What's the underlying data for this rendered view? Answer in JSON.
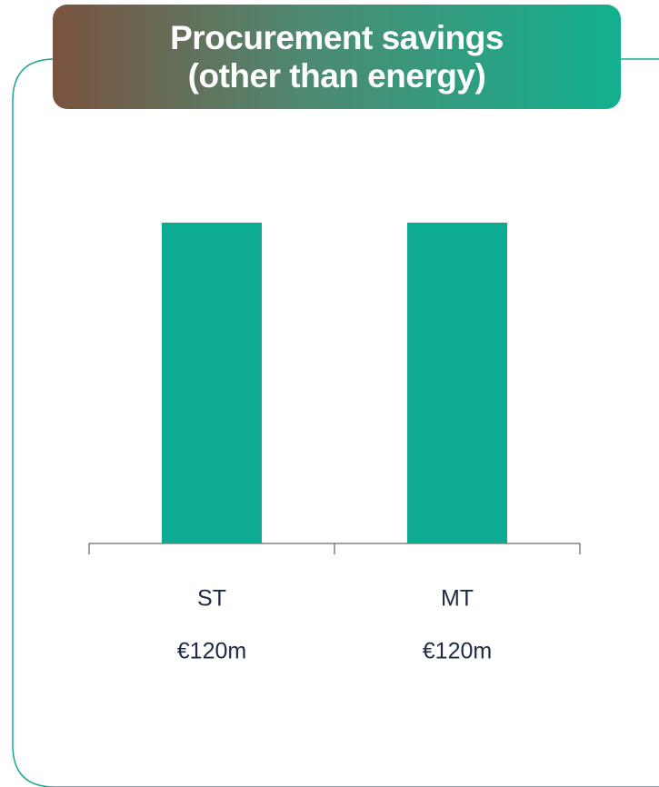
{
  "chart_data": {
    "type": "bar",
    "title": "Procurement savings (other than energy)",
    "categories": [
      "ST",
      "MT"
    ],
    "values": [
      120,
      120
    ],
    "value_labels": [
      "€120m",
      "€120m"
    ],
    "color": "#0dab91"
  }
}
